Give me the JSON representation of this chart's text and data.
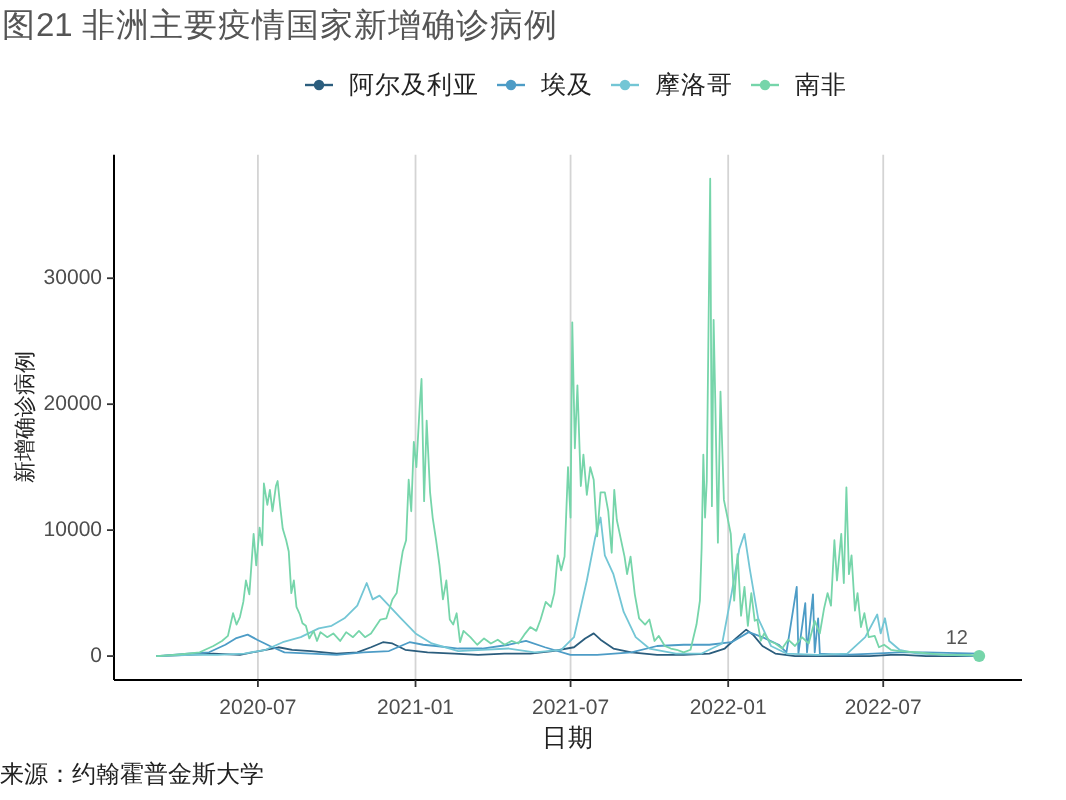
{
  "chart_data": {
    "type": "line",
    "title": "图21 非洲主要疫情国家新增确诊病例",
    "xlabel": "日期",
    "ylabel": "新增确诊病例",
    "annotations": [
      "来源：约翰霍普金斯大学",
      {
        "text": "12",
        "x": "2022-09-25",
        "y": 100
      }
    ],
    "legend": "top",
    "grid": "x",
    "xlim": [
      "2020-01-15",
      "2022-12-10"
    ],
    "ylim": [
      -1900,
      39800
    ],
    "xticks": [
      "2020-07",
      "2021-01",
      "2021-07",
      "2022-01",
      "2022-07"
    ],
    "yticks": [
      0,
      10000,
      20000,
      30000
    ],
    "series": [
      {
        "name": "阿尔及利亚",
        "color": "#2b5d7d",
        "x": [
          "2020-03-05",
          "2020-04-10",
          "2020-05-10",
          "2020-06-10",
          "2020-07-10",
          "2020-07-25",
          "2020-08-10",
          "2020-09-01",
          "2020-10-01",
          "2020-10-25",
          "2020-11-10",
          "2020-11-24",
          "2020-12-05",
          "2020-12-20",
          "2021-01-15",
          "2021-02-15",
          "2021-03-15",
          "2021-04-15",
          "2021-05-15",
          "2021-06-10",
          "2021-07-05",
          "2021-07-18",
          "2021-07-28",
          "2021-08-05",
          "2021-08-20",
          "2021-09-10",
          "2021-10-10",
          "2021-11-10",
          "2021-12-10",
          "2021-12-28",
          "2022-01-10",
          "2022-01-22",
          "2022-01-30",
          "2022-02-10",
          "2022-02-25",
          "2022-03-20",
          "2022-05-01",
          "2022-06-15",
          "2022-07-10",
          "2022-07-25",
          "2022-08-20",
          "2022-10-21"
        ],
        "values": [
          0,
          100,
          200,
          100,
          500,
          700,
          500,
          400,
          200,
          300,
          700,
          1100,
          1000,
          500,
          300,
          200,
          100,
          200,
          200,
          400,
          700,
          1400,
          1800,
          1300,
          600,
          300,
          100,
          100,
          200,
          600,
          1400,
          2100,
          1700,
          800,
          200,
          0,
          0,
          0,
          100,
          100,
          0,
          0
        ]
      },
      {
        "name": "埃及",
        "color": "#4d9cc6",
        "x": [
          "2020-03-05",
          "2020-04-10",
          "2020-05-05",
          "2020-05-24",
          "2020-06-05",
          "2020-06-19",
          "2020-06-30",
          "2020-07-15",
          "2020-08-01",
          "2020-09-01",
          "2020-10-01",
          "2020-11-01",
          "2020-12-01",
          "2020-12-25",
          "2021-01-10",
          "2021-01-25",
          "2021-02-20",
          "2021-03-20",
          "2021-04-20",
          "2021-05-10",
          "2021-06-01",
          "2021-07-01",
          "2021-08-01",
          "2021-09-10",
          "2021-10-10",
          "2021-11-10",
          "2021-12-10",
          "2022-01-05",
          "2022-01-25",
          "2022-02-10",
          "2022-03-01",
          "2022-03-10",
          "2022-03-22",
          "2022-03-24",
          "2022-04-01",
          "2022-04-03",
          "2022-04-10",
          "2022-04-12",
          "2022-04-16",
          "2022-04-18",
          "2022-05-15",
          "2022-06-20",
          "2022-07-20",
          "2022-08-20",
          "2022-10-21"
        ],
        "values": [
          0,
          200,
          300,
          900,
          1400,
          1700,
          1300,
          800,
          300,
          200,
          100,
          300,
          400,
          1100,
          900,
          800,
          600,
          600,
          900,
          1200,
          700,
          100,
          100,
          300,
          800,
          900,
          900,
          1100,
          1900,
          1500,
          900,
          300,
          5500,
          200,
          4200,
          300,
          4900,
          300,
          3000,
          200,
          100,
          200,
          300,
          300,
          200
        ]
      },
      {
        "name": "摩洛哥",
        "color": "#73c6d5",
        "x": [
          "2020-03-05",
          "2020-04-15",
          "2020-05-15",
          "2020-06-15",
          "2020-07-10",
          "2020-07-30",
          "2020-08-20",
          "2020-09-10",
          "2020-09-25",
          "2020-10-10",
          "2020-10-25",
          "2020-11-05",
          "2020-11-12",
          "2020-11-20",
          "2020-12-01",
          "2020-12-15",
          "2021-01-01",
          "2021-01-20",
          "2021-02-20",
          "2021-03-20",
          "2021-04-20",
          "2021-05-20",
          "2021-06-20",
          "2021-07-05",
          "2021-07-20",
          "2021-07-30",
          "2021-08-05",
          "2021-08-10",
          "2021-08-20",
          "2021-09-01",
          "2021-09-15",
          "2021-10-01",
          "2021-11-01",
          "2021-12-01",
          "2021-12-25",
          "2022-01-05",
          "2022-01-14",
          "2022-01-20",
          "2022-01-26",
          "2022-02-05",
          "2022-02-20",
          "2022-03-10",
          "2022-04-15",
          "2022-05-20",
          "2022-06-10",
          "2022-06-24",
          "2022-06-28",
          "2022-07-03",
          "2022-07-08",
          "2022-07-20",
          "2022-08-10",
          "2022-10-21"
        ],
        "values": [
          0,
          100,
          100,
          200,
          500,
          1100,
          1500,
          2200,
          2400,
          3000,
          4000,
          5800,
          4500,
          4800,
          4000,
          3000,
          1800,
          1000,
          400,
          500,
          600,
          300,
          500,
          1500,
          6000,
          9500,
          11000,
          8000,
          6500,
          3500,
          1500,
          600,
          200,
          200,
          1000,
          5000,
          8500,
          9700,
          7000,
          3000,
          800,
          200,
          100,
          200,
          1500,
          3300,
          1800,
          3000,
          1200,
          500,
          200,
          0
        ]
      },
      {
        "name": "南非",
        "color": "#76d5aa",
        "x": [
          "2020-03-05",
          "2020-03-25",
          "2020-04-10",
          "2020-04-24",
          "2020-05-10",
          "2020-05-20",
          "2020-05-27",
          "2020-06-02",
          "2020-06-06",
          "2020-06-10",
          "2020-06-14",
          "2020-06-17",
          "2020-06-21",
          "2020-06-26",
          "2020-06-29",
          "2020-07-03",
          "2020-07-06",
          "2020-07-08",
          "2020-07-12",
          "2020-07-15",
          "2020-07-18",
          "2020-07-22",
          "2020-07-24",
          "2020-07-27",
          "2020-07-30",
          "2020-08-03",
          "2020-08-06",
          "2020-08-09",
          "2020-08-12",
          "2020-08-15",
          "2020-08-19",
          "2020-08-22",
          "2020-08-26",
          "2020-08-30",
          "2020-09-04",
          "2020-09-08",
          "2020-09-12",
          "2020-09-20",
          "2020-09-27",
          "2020-10-05",
          "2020-10-12",
          "2020-10-20",
          "2020-10-27",
          "2020-11-03",
          "2020-11-10",
          "2020-11-21",
          "2020-11-28",
          "2020-12-05",
          "2020-12-10",
          "2020-12-14",
          "2020-12-17",
          "2020-12-21",
          "2020-12-24",
          "2020-12-27",
          "2020-12-30",
          "2021-01-02",
          "2021-01-06",
          "2021-01-08",
          "2021-01-11",
          "2021-01-14",
          "2021-01-18",
          "2021-01-21",
          "2021-01-25",
          "2021-01-29",
          "2021-02-02",
          "2021-02-06",
          "2021-02-10",
          "2021-02-14",
          "2021-02-18",
          "2021-02-22",
          "2021-02-26",
          "2021-03-06",
          "2021-03-14",
          "2021-03-22",
          "2021-03-30",
          "2021-04-07",
          "2021-04-15",
          "2021-04-23",
          "2021-05-01",
          "2021-05-08",
          "2021-05-15",
          "2021-05-22",
          "2021-05-27",
          "2021-06-02",
          "2021-06-08",
          "2021-06-12",
          "2021-06-16",
          "2021-06-20",
          "2021-06-24",
          "2021-06-28",
          "2021-07-01",
          "2021-07-03",
          "2021-07-06",
          "2021-07-09",
          "2021-07-13",
          "2021-07-16",
          "2021-07-20",
          "2021-07-24",
          "2021-07-28",
          "2021-08-01",
          "2021-08-05",
          "2021-08-10",
          "2021-08-14",
          "2021-08-18",
          "2021-08-21",
          "2021-08-24",
          "2021-08-28",
          "2021-09-02",
          "2021-09-05",
          "2021-09-09",
          "2021-09-14",
          "2021-09-19",
          "2021-09-26",
          "2021-10-01",
          "2021-10-07",
          "2021-10-12",
          "2021-10-19",
          "2021-10-26",
          "2021-11-02",
          "2021-11-10",
          "2021-11-18",
          "2021-11-25",
          "2021-11-29",
          "2021-12-01",
          "2021-12-03",
          "2021-12-05",
          "2021-12-07",
          "2021-12-08",
          "2021-12-11",
          "2021-12-13",
          "2021-12-15",
          "2021-12-17",
          "2021-12-20",
          "2021-12-23",
          "2021-12-27",
          "2021-12-30",
          "2022-01-04",
          "2022-01-08",
          "2022-01-12",
          "2022-01-16",
          "2022-01-20",
          "2022-01-24",
          "2022-01-28",
          "2022-02-01",
          "2022-02-04",
          "2022-02-08",
          "2022-02-12",
          "2022-02-18",
          "2022-02-25",
          "2022-03-05",
          "2022-03-12",
          "2022-03-20",
          "2022-03-28",
          "2022-04-05",
          "2022-04-12",
          "2022-04-18",
          "2022-04-23",
          "2022-04-27",
          "2022-05-01",
          "2022-05-05",
          "2022-05-08",
          "2022-05-13",
          "2022-05-16",
          "2022-05-19",
          "2022-05-22",
          "2022-05-25",
          "2022-05-29",
          "2022-06-01",
          "2022-06-05",
          "2022-06-09",
          "2022-06-14",
          "2022-06-21",
          "2022-06-26",
          "2022-07-02",
          "2022-07-10",
          "2022-07-20",
          "2022-08-10",
          "2022-08-25",
          "2022-09-10",
          "2022-09-25",
          "2022-10-10",
          "2022-10-21"
        ],
        "values": [
          0,
          100,
          200,
          300,
          800,
          1200,
          1600,
          3400,
          2500,
          3100,
          4300,
          6000,
          4900,
          9700,
          7200,
          10200,
          8800,
          13700,
          12000,
          13200,
          11500,
          13500,
          13900,
          11900,
          10100,
          9200,
          8300,
          5000,
          6000,
          3900,
          3300,
          2600,
          2400,
          1400,
          2000,
          1200,
          1900,
          1500,
          1800,
          1200,
          1900,
          1500,
          2000,
          1500,
          1800,
          2900,
          3000,
          4500,
          5000,
          7000,
          8300,
          9200,
          14000,
          11500,
          17000,
          15000,
          20000,
          22000,
          12300,
          18700,
          13000,
          11000,
          9200,
          7200,
          4500,
          6000,
          2900,
          2500,
          3400,
          1100,
          2000,
          1500,
          900,
          1400,
          1000,
          1300,
          900,
          1200,
          1000,
          1700,
          2300,
          2000,
          2900,
          4300,
          3900,
          5000,
          8000,
          6800,
          7900,
          15000,
          11000,
          26500,
          16500,
          21500,
          13500,
          16000,
          12800,
          15000,
          14000,
          9500,
          13000,
          13000,
          11500,
          8200,
          13200,
          10800,
          9500,
          7900,
          6500,
          7900,
          4900,
          3000,
          2500,
          2900,
          1200,
          1600,
          800,
          600,
          500,
          300,
          500,
          2500,
          4400,
          8600,
          16000,
          11000,
          13900,
          19800,
          37900,
          11900,
          26700,
          20000,
          9000,
          21000,
          12400,
          11400,
          9700,
          4400,
          8100,
          3200,
          5500,
          2400,
          5000,
          2800,
          2900,
          1200,
          1800,
          1200,
          1000,
          600,
          1300,
          800,
          1500,
          1000,
          2800,
          1800,
          3800,
          5000,
          4000,
          9200,
          6000,
          9700,
          5800,
          13400,
          6500,
          8000,
          3600,
          5000,
          2300,
          3400,
          1500,
          1600,
          700,
          900,
          500,
          400,
          300,
          200,
          100,
          100,
          100,
          0
        ]
      },
      {
        "type": "scatter",
        "color": "#76d5aa",
        "x": [
          "2022-10-21"
        ],
        "values": [
          0
        ]
      }
    ]
  }
}
